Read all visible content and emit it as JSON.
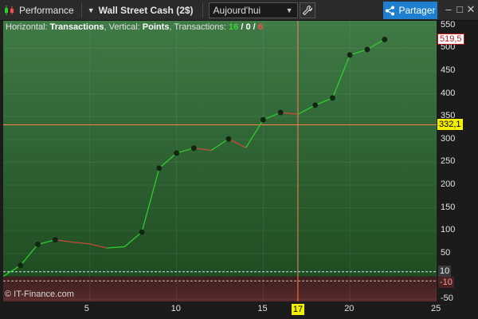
{
  "toolbar": {
    "performance_label": "Performance",
    "instrument_label": "Wall Street Cash (2$)",
    "period_value": "Aujourd'hui",
    "share_label": "Partager",
    "minimize_glyph": "–",
    "restore_glyph": "□",
    "close_glyph": "✕"
  },
  "legend": {
    "prefix_h": "Horizontal: ",
    "h_value": "Transactions",
    "prefix_v": ", Vertical: ",
    "v_value": "Points",
    "prefix_t": ", Transactions: ",
    "t_win": "16",
    "slash1": " / ",
    "t_flat": "0",
    "slash2": " / ",
    "t_loss": "6"
  },
  "copyright": "© IT-Finance.com",
  "crosshair": {
    "x_label": "17",
    "y_label": "332,1"
  },
  "last_value_label": "519,5",
  "colors": {
    "profit_zone": "#2f6a33",
    "loss_zone": "#5a2a2a",
    "gain_segment": "#2ecc2e",
    "loss_segment": "#c84a3a",
    "crosshair": "#ff7f50",
    "highlight": "#f5f000"
  },
  "chart_data": {
    "type": "line",
    "x": [
      1,
      2,
      3,
      4,
      5,
      6,
      7,
      8,
      9,
      10,
      11,
      12,
      13,
      14,
      15,
      16,
      17,
      18,
      19,
      20,
      21,
      22
    ],
    "y": [
      24,
      70,
      80,
      75,
      71,
      62,
      65,
      97,
      237,
      270,
      281,
      276,
      301,
      282,
      343,
      359,
      355,
      375,
      391,
      485,
      497,
      519
    ],
    "markers": [
      1,
      2,
      3,
      8,
      9,
      10,
      11,
      13,
      15,
      16,
      18,
      19,
      20,
      21,
      22
    ],
    "xlim": [
      0,
      25
    ],
    "ylim": [
      -55,
      560
    ],
    "xticks": [
      5,
      10,
      15,
      20,
      25
    ],
    "yticks": [
      550,
      500,
      450,
      400,
      350,
      300,
      250,
      200,
      150,
      100,
      50,
      -50
    ],
    "zero_band": {
      "upper": 10,
      "lower": -10,
      "upper_label": "10",
      "lower_label": "-10"
    },
    "xlabel": "Transactions",
    "ylabel": "Points",
    "grid": true
  }
}
